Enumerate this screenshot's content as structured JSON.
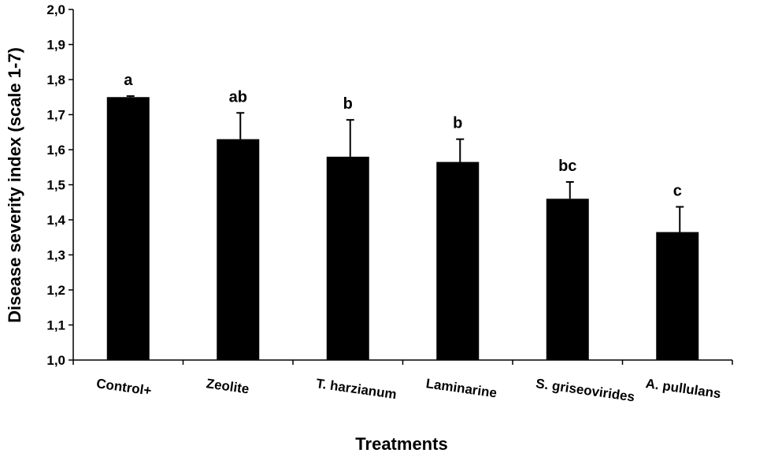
{
  "chart_data": {
    "type": "bar",
    "title": "",
    "xlabel": "Treatments",
    "ylabel": "Disease severity index (scale 1-7)",
    "categories": [
      "Control+",
      "Zeolite",
      "T. harzianum",
      "Laminarine",
      "S. griseovirides",
      "A. pullulans"
    ],
    "values": [
      1.75,
      1.63,
      1.58,
      1.565,
      1.46,
      1.365
    ],
    "errors": [
      0.003,
      0.075,
      0.105,
      0.065,
      0.048,
      0.072
    ],
    "significance": [
      "a",
      "ab",
      "b",
      "b",
      "bc",
      "c"
    ],
    "ylim": [
      1.0,
      2.0
    ],
    "yticks": [
      1.0,
      1.1,
      1.2,
      1.3,
      1.4,
      1.5,
      1.6,
      1.7,
      1.8,
      1.9,
      2.0
    ],
    "ytick_labels": [
      "1,0",
      "1,1",
      "1,2",
      "1,3",
      "1,4",
      "1,5",
      "1,6",
      "1,7",
      "1,8",
      "1,9",
      "2,0"
    ],
    "bar_color": "#000000",
    "grid": false,
    "legend": "none"
  }
}
